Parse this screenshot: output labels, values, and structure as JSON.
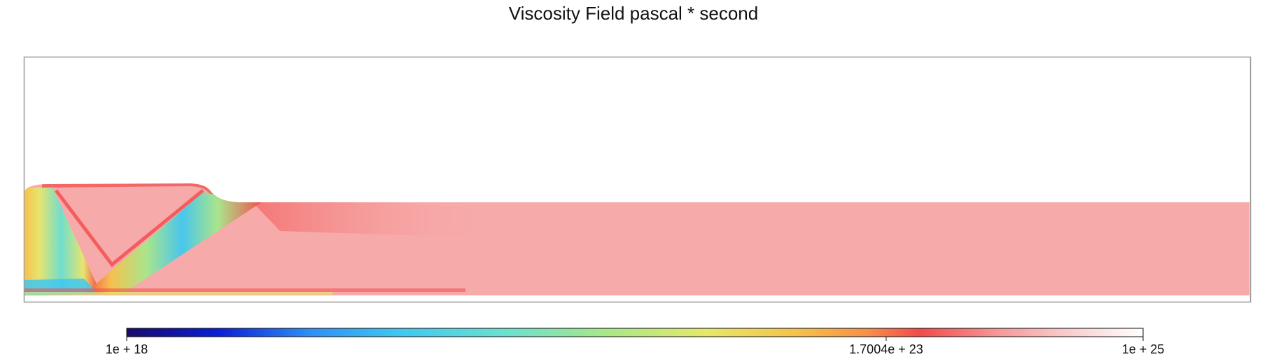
{
  "title": "Viscosity Field pascal * second",
  "chart_data": {
    "type": "heatmap",
    "title": "Viscosity Field pascal * second",
    "colorbar": {
      "scale": "log",
      "orientation": "horizontal",
      "placement": "bottom",
      "min": 1e+18,
      "max": 1e+25,
      "ticks": [
        {
          "value": 1e+18,
          "label": "1e + 18"
        },
        {
          "value": 1.7004e+23,
          "label": "1.7004e + 23"
        },
        {
          "value": 1e+25,
          "label": "1e + 25"
        }
      ],
      "colormap": [
        "#1a0a6b",
        "#0a1fd6",
        "#2e8ef5",
        "#40c8f0",
        "#6ae0d0",
        "#a6e88a",
        "#e6e86a",
        "#f5c24a",
        "#f78e4a",
        "#f24a4a",
        "#f59a9a",
        "#fbd6d6",
        "#ffffff"
      ]
    },
    "field_description": {
      "background_value": 1e+24,
      "high_strain_bands": "low-viscosity shear bands in the left wedge region",
      "domain": "lithosphere block with a raised wedge on the left"
    }
  }
}
